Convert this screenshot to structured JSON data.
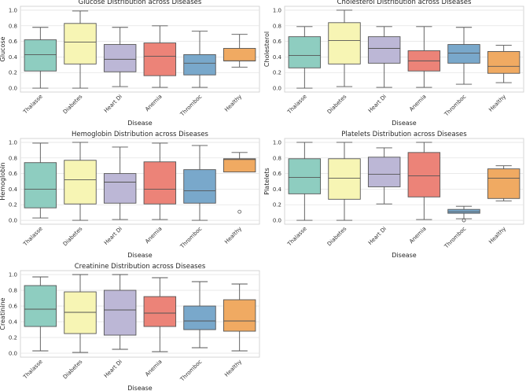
{
  "chart_data": [
    {
      "type": "box",
      "title": "Glucose Distribution across Diseases",
      "xlabel": "Disease",
      "ylabel": "Glucose",
      "ylim": [
        -0.05,
        1.05
      ],
      "yticks": [
        "0.0",
        "0.2",
        "0.4",
        "0.6",
        "0.8",
        "1.0"
      ],
      "grid": true,
      "categories": [
        "Thalasse",
        "Diabetes",
        "Heart Di",
        "Anemia",
        "Thromboc",
        "Healthy"
      ],
      "boxes": [
        [
          0,
          0.22,
          0.43,
          0.62,
          0.78
        ],
        [
          0,
          0.31,
          0.59,
          0.83,
          0.99
        ],
        [
          0.02,
          0.21,
          0.37,
          0.56,
          0.78
        ],
        [
          0.01,
          0.16,
          0.41,
          0.58,
          0.8
        ],
        [
          0.01,
          0.17,
          0.32,
          0.43,
          0.73
        ],
        [
          0.27,
          0.35,
          0.35,
          0.51,
          0.69
        ]
      ],
      "outliers": [
        [],
        [],
        [],
        [],
        [],
        []
      ]
    },
    {
      "type": "box",
      "title": "Cholesterol Distribution across Diseases",
      "xlabel": "Disease",
      "ylabel": "Cholesterol",
      "ylim": [
        -0.05,
        1.05
      ],
      "yticks": [
        "0.0",
        "0.2",
        "0.4",
        "0.6",
        "0.8",
        "1.0"
      ],
      "grid": true,
      "categories": [
        "Thalasse",
        "Diabetes",
        "Heart Di",
        "Anemia",
        "Thromboc",
        "Healthy"
      ],
      "boxes": [
        [
          0,
          0.26,
          0.42,
          0.66,
          0.79
        ],
        [
          0.02,
          0.31,
          0.61,
          0.84,
          1.0
        ],
        [
          0.01,
          0.32,
          0.51,
          0.66,
          0.79
        ],
        [
          0.01,
          0.22,
          0.35,
          0.48,
          0.79
        ],
        [
          0.05,
          0.32,
          0.45,
          0.56,
          0.78
        ],
        [
          0.07,
          0.19,
          0.28,
          0.47,
          0.55
        ]
      ],
      "outliers": [
        [],
        [],
        [],
        [],
        [],
        []
      ]
    },
    {
      "type": "box",
      "title": "Hemoglobin Distribution across Diseases",
      "xlabel": "Disease",
      "ylabel": "Hemoglobin",
      "ylim": [
        -0.05,
        1.05
      ],
      "yticks": [
        "0.0",
        "0.2",
        "0.4",
        "0.6",
        "0.8",
        "1.0"
      ],
      "grid": true,
      "categories": [
        "Thalasse",
        "Diabetes",
        "Heart Di",
        "Anemia",
        "Thromboc",
        "Healthy"
      ],
      "boxes": [
        [
          0.03,
          0.16,
          0.4,
          0.74,
          0.99
        ],
        [
          0,
          0.21,
          0.52,
          0.77,
          1.0
        ],
        [
          0.01,
          0.22,
          0.49,
          0.6,
          0.94
        ],
        [
          0.01,
          0.21,
          0.4,
          0.75,
          0.99
        ],
        [
          0,
          0.22,
          0.38,
          0.65,
          0.96
        ],
        [
          0.62,
          0.62,
          0.78,
          0.79,
          0.87
        ]
      ],
      "outliers": [
        [],
        [],
        [],
        [],
        [],
        [
          0.11
        ]
      ]
    },
    {
      "type": "box",
      "title": "Platelets Distribution across Diseases",
      "xlabel": "Disease",
      "ylabel": "Platelets",
      "ylim": [
        -0.05,
        1.05
      ],
      "yticks": [
        "0.0",
        "0.2",
        "0.4",
        "0.6",
        "0.8",
        "1.0"
      ],
      "grid": true,
      "categories": [
        "Thalasse",
        "Diabetes",
        "Heart Di",
        "Anemia",
        "Thromboc",
        "Healthy"
      ],
      "boxes": [
        [
          0,
          0.34,
          0.55,
          0.79,
          1.0
        ],
        [
          0,
          0.27,
          0.54,
          0.79,
          1.0
        ],
        [
          0.21,
          0.43,
          0.59,
          0.81,
          0.93
        ],
        [
          0.01,
          0.3,
          0.57,
          0.87,
          1.0
        ],
        [
          0.02,
          0.09,
          0.11,
          0.14,
          0.18
        ],
        [
          0.25,
          0.28,
          0.54,
          0.66,
          0.7
        ]
      ],
      "outliers": [
        [],
        [],
        [],
        [],
        [
          0.0
        ],
        []
      ]
    },
    {
      "type": "box",
      "title": "Creatinine Distribution across Diseases",
      "xlabel": "Disease",
      "ylabel": "Creatinine",
      "ylim": [
        -0.05,
        1.05
      ],
      "yticks": [
        "0.0",
        "0.2",
        "0.4",
        "0.6",
        "0.8",
        "1.0"
      ],
      "grid": true,
      "categories": [
        "Thalasse",
        "Diabetes",
        "Heart Di",
        "Anemia",
        "Thromboc",
        "Healthy"
      ],
      "boxes": [
        [
          0.03,
          0.34,
          0.56,
          0.86,
          0.97
        ],
        [
          0.01,
          0.25,
          0.52,
          0.78,
          1.0
        ],
        [
          0.05,
          0.23,
          0.55,
          0.8,
          1.0
        ],
        [
          0.02,
          0.34,
          0.51,
          0.72,
          0.96
        ],
        [
          0.07,
          0.3,
          0.41,
          0.6,
          0.91
        ],
        [
          0.03,
          0.28,
          0.41,
          0.68,
          0.88
        ]
      ],
      "outliers": [
        [],
        [],
        [],
        [],
        [],
        []
      ]
    }
  ],
  "colors": [
    "#8ecdc0",
    "#f7f5b4",
    "#bcb7d6",
    "#ec8378",
    "#79a8cb",
    "#f0aa62"
  ]
}
